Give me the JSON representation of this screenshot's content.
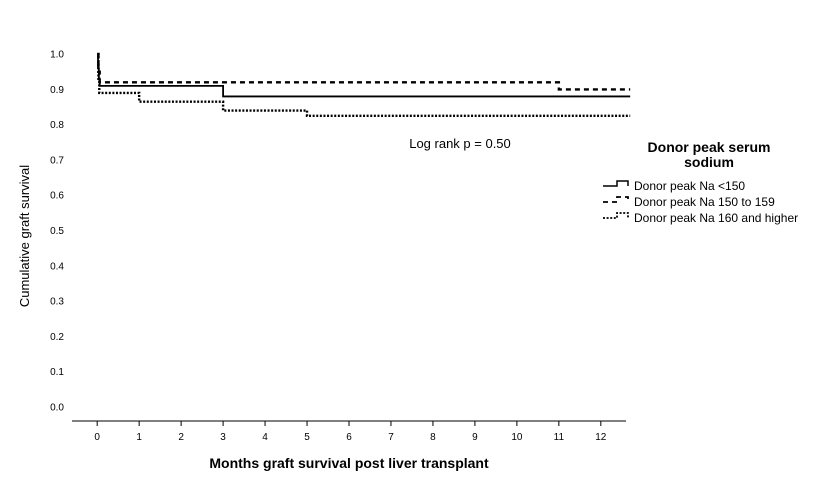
{
  "chart_data": {
    "type": "line",
    "xlabel": "Months graft survival post liver transplant",
    "ylabel": "Cumulative graft survival",
    "xlim": [
      -0.6,
      12.6
    ],
    "ylim": [
      -0.04,
      1.04
    ],
    "x_ticks": [
      "0",
      "1",
      "2",
      "3",
      "4",
      "5",
      "6",
      "7",
      "8",
      "9",
      "10",
      "11",
      "12"
    ],
    "y_ticks": [
      "0.0",
      "0.1",
      "0.2",
      "0.3",
      "0.4",
      "0.5",
      "0.6",
      "0.7",
      "0.8",
      "0.9",
      "1.0"
    ],
    "grid": false,
    "annotation": "Log rank p = 0.50",
    "legend": {
      "title": "Donor peak serum sodium",
      "position": "right",
      "entries": [
        "Donor peak Na <150",
        "Donor peak Na 150 to 159",
        "Donor peak Na 160 and higher"
      ]
    },
    "series": [
      {
        "name": "Donor peak Na <150",
        "style": "solid",
        "steps": [
          [
            0,
            1.0
          ],
          [
            0.02,
            0.96
          ],
          [
            0.04,
            0.93
          ],
          [
            0.06,
            0.91
          ],
          [
            3,
            0.88
          ],
          [
            12.7,
            0.88
          ]
        ]
      },
      {
        "name": "Donor peak Na 150 to 159",
        "style": "dashed",
        "steps": [
          [
            0,
            1.0
          ],
          [
            0.03,
            0.95
          ],
          [
            0.06,
            0.92
          ],
          [
            11,
            0.9
          ],
          [
            12.7,
            0.9
          ]
        ]
      },
      {
        "name": "Donor peak Na 160 and higher",
        "style": "dotted",
        "steps": [
          [
            0,
            1.0
          ],
          [
            0.03,
            0.93
          ],
          [
            0.05,
            0.89
          ],
          [
            1,
            0.865
          ],
          [
            3,
            0.84
          ],
          [
            5,
            0.825
          ],
          [
            12.7,
            0.825
          ]
        ]
      }
    ]
  }
}
